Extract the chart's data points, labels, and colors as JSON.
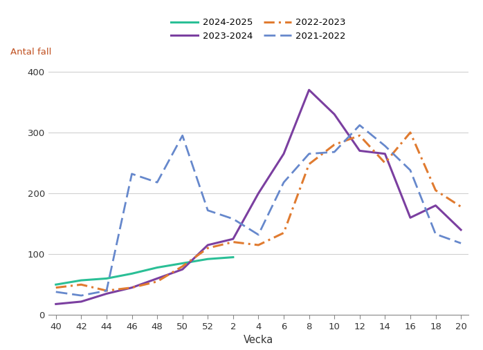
{
  "xlabel": "Vecka",
  "ylabel": "Antal fall",
  "ylim": [
    0,
    420
  ],
  "yticks": [
    0,
    100,
    200,
    300,
    400
  ],
  "x_labels": [
    "40",
    "42",
    "44",
    "46",
    "48",
    "50",
    "52",
    "2",
    "4",
    "6",
    "8",
    "10",
    "12",
    "14",
    "16",
    "18",
    "20"
  ],
  "x_positions": [
    0,
    1,
    2,
    3,
    4,
    5,
    6,
    7,
    8,
    9,
    10,
    11,
    12,
    13,
    14,
    15,
    16
  ],
  "series_2024_2025": {
    "label": "2024-2025",
    "color": "#2abf96",
    "linestyle": "solid",
    "linewidth": 2.2,
    "values": [
      50,
      57,
      60,
      68,
      78,
      85,
      92,
      95,
      null,
      null,
      null,
      null,
      null,
      null,
      null,
      null,
      null
    ]
  },
  "series_2023_2024": {
    "label": "2023-2024",
    "color": "#7b3fa0",
    "linestyle": "solid",
    "linewidth": 2.2,
    "values": [
      18,
      22,
      35,
      45,
      60,
      75,
      115,
      125,
      200,
      265,
      370,
      330,
      270,
      265,
      160,
      180,
      140
    ]
  },
  "series_2022_2023": {
    "label": "2022-2023",
    "color": "#e07b30",
    "linestyle": "dashdot",
    "linewidth": 2.2,
    "values": [
      45,
      50,
      40,
      45,
      55,
      80,
      110,
      120,
      115,
      135,
      248,
      280,
      295,
      250,
      300,
      205,
      178
    ]
  },
  "series_2021_2022": {
    "label": "2021-2022",
    "color": "#6688cc",
    "linestyle": "dashed",
    "linewidth": 2.0,
    "values": [
      38,
      32,
      40,
      232,
      218,
      295,
      172,
      158,
      132,
      218,
      265,
      268,
      312,
      278,
      238,
      133,
      118
    ]
  },
  "background_color": "#ffffff",
  "grid_color": "#d0d0d0",
  "ylabel_color": "#c05020",
  "text_color": "#333333",
  "tick_color": "#888888"
}
